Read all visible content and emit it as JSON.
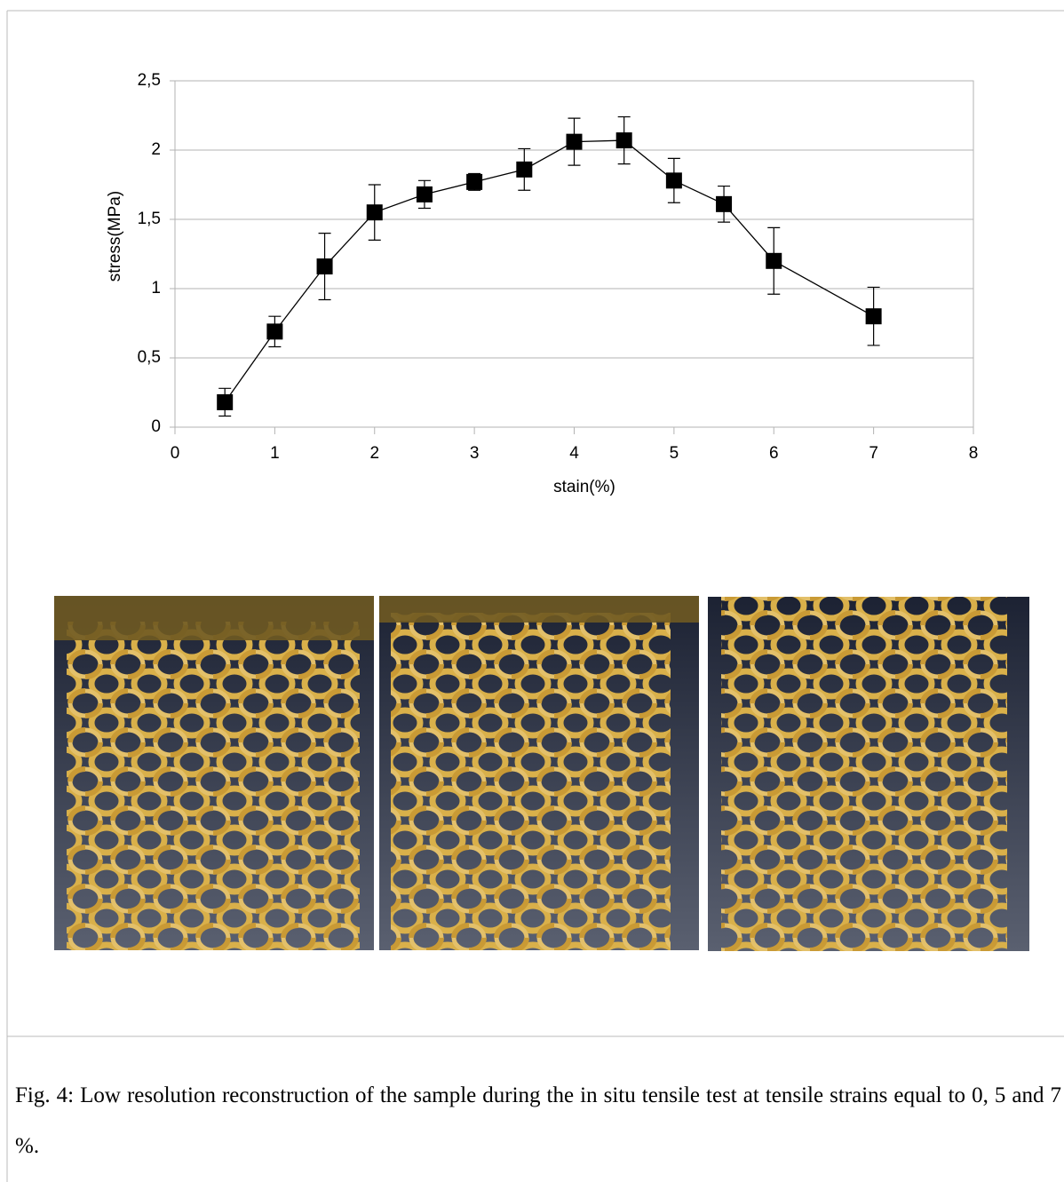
{
  "chart_data": {
    "type": "line",
    "x_label": "stain(%)",
    "y_label": "stress(MPa)",
    "x": [
      0.5,
      1,
      1.5,
      2,
      2.5,
      3,
      3.5,
      4,
      4.5,
      5,
      5.5,
      6,
      7
    ],
    "values": [
      0.18,
      0.69,
      1.16,
      1.55,
      1.68,
      1.77,
      1.86,
      2.06,
      2.07,
      1.78,
      1.61,
      1.2,
      0.8
    ],
    "errors": [
      0.1,
      0.11,
      0.24,
      0.2,
      0.1,
      0.06,
      0.15,
      0.17,
      0.17,
      0.16,
      0.13,
      0.24,
      0.21
    ],
    "color": "#000000",
    "xlim": [
      0,
      8
    ],
    "xticks": [
      0,
      1,
      2,
      3,
      4,
      5,
      6,
      7,
      8
    ],
    "ylim": [
      0,
      2.5
    ],
    "yticks": [
      0,
      {
        "value": 0.5,
        "label": "0,5"
      },
      1,
      {
        "value": 1.5,
        "label": "1,5"
      },
      2,
      {
        "value": 2.5,
        "label": "2,5"
      }
    ],
    "grid": true
  },
  "caption": "Fig. 4: Low resolution reconstruction of the sample during the in situ tensile test at tensile strains equal to  0, 5 and 7 %."
}
